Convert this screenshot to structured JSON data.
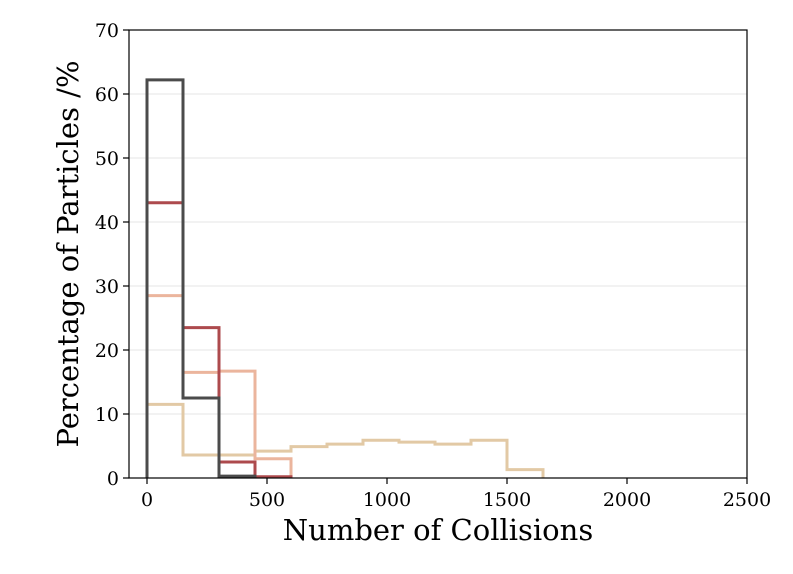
{
  "chart_data": {
    "type": "histogram-step",
    "title": "",
    "xlabel": "Number of Collisions",
    "ylabel": "Percentage of Particles /%",
    "xlim": [
      -75,
      2500
    ],
    "ylim": [
      0,
      70
    ],
    "xticks": [
      0,
      500,
      1000,
      1500,
      2000,
      2500
    ],
    "yticks": [
      0,
      10,
      20,
      30,
      40,
      50,
      60,
      70
    ],
    "grid": "horizontal",
    "legend": "none",
    "bin_width": 150,
    "series": [
      {
        "color": "#e2c9a5",
        "bin_starts": [
          0,
          150,
          300,
          450,
          600,
          750,
          900,
          1050,
          1200,
          1350,
          1500
        ],
        "values": [
          11.5,
          3.6,
          3.6,
          4.2,
          4.9,
          5.3,
          5.9,
          5.6,
          5.3,
          5.9,
          1.3
        ]
      },
      {
        "color": "#ebb59d",
        "bin_starts": [
          0,
          150,
          300,
          450
        ],
        "values": [
          28.5,
          16.5,
          16.7,
          3.0
        ]
      },
      {
        "color": "#ad4a4d",
        "bin_starts": [
          0,
          150,
          300,
          450
        ],
        "values": [
          43.0,
          23.5,
          2.5,
          0.2
        ]
      },
      {
        "color": "#4b4b4b",
        "bin_starts": [
          0,
          150,
          300
        ],
        "values": [
          62.2,
          12.5,
          0.3
        ]
      }
    ]
  }
}
